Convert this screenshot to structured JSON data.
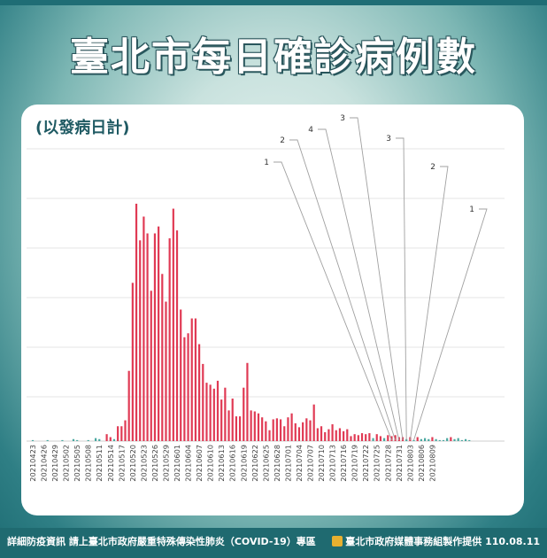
{
  "title": "臺北市每日確診病例數",
  "subtitle": "(以發病日計)",
  "footer": {
    "left": "詳細防疫資訊 請上臺北市政府嚴重特殊傳染性肺炎（COVID-19）專區",
    "right": "臺北市政府媒體事務組製作提供 110.08.11",
    "logo_icon": "taipei-city-logo-icon"
  },
  "colors": {
    "bar": "#e03a54",
    "bar_small": "#4aa8a0",
    "grid": "#e6e6e6",
    "callout": "#a0a0a0"
  },
  "chart_data": {
    "type": "bar",
    "title": "臺北市每日確診病例數",
    "subtitle": "(以發病日計)",
    "xlabel": "",
    "ylabel": "",
    "grid": true,
    "legend": "none",
    "tick_labels": [
      "20210423",
      "20210426",
      "20210429",
      "20210502",
      "20210505",
      "20210508",
      "20210511",
      "20210514",
      "20210517",
      "20210520",
      "20210523",
      "20210526",
      "20210529",
      "20210601",
      "20210604",
      "20210607",
      "20210610",
      "20210613",
      "20210616",
      "20210619",
      "20210622",
      "20210625",
      "20210628",
      "20210701",
      "20210704",
      "20210707",
      "20210710",
      "20210713",
      "20210716",
      "20210719",
      "20210722",
      "20210725",
      "20210728",
      "20210731",
      "20210803",
      "20210806",
      "20210809"
    ],
    "start_date": "20210423",
    "values": [
      1,
      0,
      0,
      0,
      1,
      0,
      0,
      0,
      1,
      0,
      0,
      2,
      1,
      0,
      0,
      1,
      0,
      3,
      2,
      0,
      7,
      4,
      2,
      15,
      15,
      21,
      71,
      160,
      240,
      203,
      227,
      210,
      152,
      210,
      217,
      169,
      141,
      205,
      235,
      213,
      133,
      105,
      109,
      124,
      124,
      98,
      78,
      59,
      57,
      53,
      61,
      42,
      54,
      31,
      43,
      25,
      25,
      54,
      79,
      31,
      30,
      28,
      24,
      20,
      11,
      22,
      23,
      22,
      15,
      24,
      28,
      18,
      14,
      19,
      23,
      21,
      37,
      13,
      15,
      9,
      12,
      17,
      11,
      13,
      10,
      12,
      5,
      7,
      6,
      8,
      7,
      8,
      3,
      7,
      5,
      3,
      6,
      5,
      6,
      4,
      4,
      2,
      4,
      1,
      4,
      2,
      3,
      2,
      4,
      2,
      1,
      1,
      3,
      4,
      2,
      3,
      1,
      2,
      1
    ],
    "annotations": [
      {
        "date": "20210729",
        "value": 1
      },
      {
        "date": "20210730",
        "value": 2
      },
      {
        "date": "20210731",
        "value": 4
      },
      {
        "date": "20210801",
        "value": 3
      },
      {
        "date": "20210802",
        "value": 3
      },
      {
        "date": "20210803",
        "value": 2
      },
      {
        "date": "20210804",
        "value": 1
      }
    ]
  }
}
